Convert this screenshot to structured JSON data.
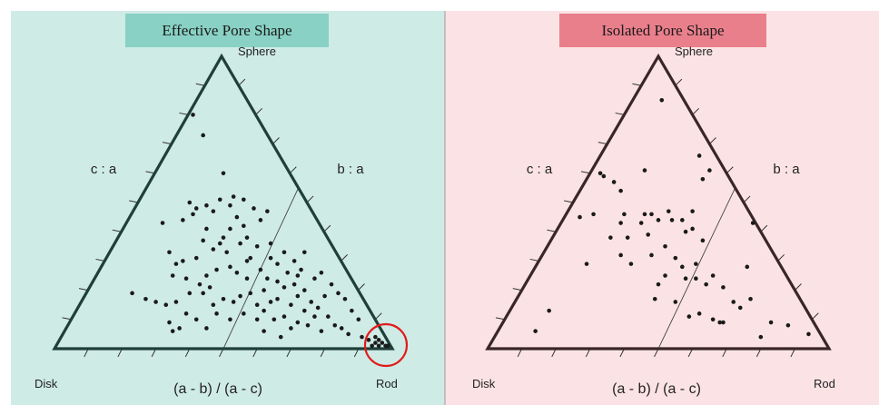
{
  "colors": {
    "left_bg": "#cfebe6",
    "right_bg": "#fbe3e5",
    "left_title_bg": "#88d1c4",
    "right_title_bg": "#ea7f8c",
    "left_frame": "#1f3f39",
    "right_frame": "#3a2528",
    "point_color": "#1a1a1a",
    "highlight_circle": "#e11b1b"
  },
  "chart_data": [
    {
      "type": "scatter",
      "title": "Effective Pore Shape",
      "vertices": {
        "top": "Sphere",
        "bottom_left": "Disk",
        "bottom_right": "Rod"
      },
      "left_axis_label": "c : a",
      "right_axis_label": "b : a",
      "bottom_axis_label": "(a - b) / (a - c)",
      "ticks_per_side": 10,
      "guide_line": true,
      "highlight": "Rod",
      "points_note": "x = (a-b)/(a-c) (0 at Disk, 1 at Rod); y = 0 at base, 1 at Sphere",
      "points": [
        [
          0.41,
          0.8
        ],
        [
          0.44,
          0.73
        ],
        [
          0.5,
          0.6
        ],
        [
          0.49,
          0.51
        ],
        [
          0.52,
          0.49
        ],
        [
          0.59,
          0.48
        ],
        [
          0.63,
          0.47
        ],
        [
          0.32,
          0.43
        ],
        [
          0.4,
          0.5
        ],
        [
          0.42,
          0.48
        ],
        [
          0.45,
          0.49
        ],
        [
          0.47,
          0.47
        ],
        [
          0.41,
          0.46
        ],
        [
          0.38,
          0.44
        ],
        [
          0.53,
          0.52
        ],
        [
          0.56,
          0.51
        ],
        [
          0.54,
          0.45
        ],
        [
          0.61,
          0.44
        ],
        [
          0.52,
          0.41
        ],
        [
          0.57,
          0.38
        ],
        [
          0.55,
          0.36
        ],
        [
          0.5,
          0.38
        ],
        [
          0.49,
          0.36
        ],
        [
          0.45,
          0.41
        ],
        [
          0.47,
          0.34
        ],
        [
          0.42,
          0.31
        ],
        [
          0.38,
          0.3
        ],
        [
          0.36,
          0.29
        ],
        [
          0.35,
          0.25
        ],
        [
          0.39,
          0.24
        ],
        [
          0.45,
          0.25
        ],
        [
          0.48,
          0.27
        ],
        [
          0.52,
          0.28
        ],
        [
          0.54,
          0.26
        ],
        [
          0.6,
          0.35
        ],
        [
          0.64,
          0.36
        ],
        [
          0.68,
          0.33
        ],
        [
          0.71,
          0.3
        ],
        [
          0.74,
          0.33
        ],
        [
          0.66,
          0.29
        ],
        [
          0.61,
          0.27
        ],
        [
          0.57,
          0.24
        ],
        [
          0.63,
          0.24
        ],
        [
          0.66,
          0.23
        ],
        [
          0.68,
          0.21
        ],
        [
          0.62,
          0.2
        ],
        [
          0.58,
          0.19
        ],
        [
          0.55,
          0.18
        ],
        [
          0.53,
          0.16
        ],
        [
          0.5,
          0.17
        ],
        [
          0.47,
          0.15
        ],
        [
          0.44,
          0.19
        ],
        [
          0.4,
          0.19
        ],
        [
          0.36,
          0.16
        ],
        [
          0.33,
          0.15
        ],
        [
          0.3,
          0.16
        ],
        [
          0.23,
          0.19
        ],
        [
          0.27,
          0.17
        ],
        [
          0.39,
          0.12
        ],
        [
          0.42,
          0.1
        ],
        [
          0.48,
          0.12
        ],
        [
          0.52,
          0.1
        ],
        [
          0.56,
          0.12
        ],
        [
          0.6,
          0.1
        ],
        [
          0.62,
          0.13
        ],
        [
          0.65,
          0.1
        ],
        [
          0.68,
          0.11
        ],
        [
          0.7,
          0.15
        ],
        [
          0.72,
          0.18
        ],
        [
          0.74,
          0.2
        ],
        [
          0.76,
          0.16
        ],
        [
          0.78,
          0.14
        ],
        [
          0.8,
          0.18
        ],
        [
          0.82,
          0.22
        ],
        [
          0.84,
          0.19
        ],
        [
          0.86,
          0.17
        ],
        [
          0.88,
          0.13
        ],
        [
          0.9,
          0.1
        ],
        [
          0.83,
          0.08
        ],
        [
          0.79,
          0.06
        ],
        [
          0.75,
          0.08
        ],
        [
          0.72,
          0.09
        ],
        [
          0.7,
          0.07
        ],
        [
          0.74,
          0.13
        ],
        [
          0.77,
          0.11
        ],
        [
          0.81,
          0.11
        ],
        [
          0.85,
          0.07
        ],
        [
          0.87,
          0.05
        ],
        [
          0.91,
          0.04
        ],
        [
          0.93,
          0.03
        ],
        [
          0.95,
          0.02
        ],
        [
          0.96,
          0.03
        ],
        [
          0.97,
          0.02
        ],
        [
          0.96,
          0.01
        ],
        [
          0.98,
          0.01
        ],
        [
          0.95,
          0.04
        ],
        [
          0.94,
          0.01
        ],
        [
          0.99,
          0.01
        ],
        [
          0.58,
          0.31
        ],
        [
          0.64,
          0.31
        ],
        [
          0.57,
          0.3
        ],
        [
          0.69,
          0.26
        ],
        [
          0.72,
          0.25
        ],
        [
          0.77,
          0.24
        ],
        [
          0.71,
          0.22
        ],
        [
          0.66,
          0.17
        ],
        [
          0.6,
          0.15
        ],
        [
          0.64,
          0.16
        ],
        [
          0.34,
          0.09
        ],
        [
          0.37,
          0.07
        ],
        [
          0.35,
          0.06
        ],
        [
          0.45,
          0.07
        ],
        [
          0.67,
          0.04
        ],
        [
          0.62,
          0.06
        ],
        [
          0.79,
          0.26
        ],
        [
          0.73,
          0.27
        ],
        [
          0.46,
          0.21
        ],
        [
          0.43,
          0.22
        ],
        [
          0.34,
          0.33
        ],
        [
          0.44,
          0.37
        ],
        [
          0.56,
          0.42
        ],
        [
          0.51,
          0.33
        ]
      ]
    },
    {
      "type": "scatter",
      "title": "Isolated Pore Shape",
      "vertices": {
        "top": "Sphere",
        "bottom_left": "Disk",
        "bottom_right": "Rod"
      },
      "left_axis_label": "c : a",
      "right_axis_label": "b : a",
      "bottom_axis_label": "(a - b) / (a - c)",
      "ticks_per_side": 10,
      "guide_line": true,
      "points_note": "x = (a-b)/(a-c) (0 at Disk, 1 at Rod); y = 0 at base, 1 at Sphere",
      "points": [
        [
          0.51,
          0.85
        ],
        [
          0.62,
          0.66
        ],
        [
          0.65,
          0.61
        ],
        [
          0.63,
          0.58
        ],
        [
          0.46,
          0.61
        ],
        [
          0.33,
          0.6
        ],
        [
          0.34,
          0.59
        ],
        [
          0.37,
          0.57
        ],
        [
          0.39,
          0.54
        ],
        [
          0.27,
          0.45
        ],
        [
          0.31,
          0.46
        ],
        [
          0.39,
          0.43
        ],
        [
          0.46,
          0.46
        ],
        [
          0.48,
          0.46
        ],
        [
          0.53,
          0.47
        ],
        [
          0.54,
          0.44
        ],
        [
          0.5,
          0.44
        ],
        [
          0.45,
          0.43
        ],
        [
          0.57,
          0.44
        ],
        [
          0.6,
          0.41
        ],
        [
          0.6,
          0.47
        ],
        [
          0.36,
          0.38
        ],
        [
          0.41,
          0.38
        ],
        [
          0.47,
          0.39
        ],
        [
          0.58,
          0.4
        ],
        [
          0.63,
          0.37
        ],
        [
          0.29,
          0.29
        ],
        [
          0.39,
          0.32
        ],
        [
          0.42,
          0.29
        ],
        [
          0.48,
          0.32
        ],
        [
          0.52,
          0.35
        ],
        [
          0.55,
          0.31
        ],
        [
          0.61,
          0.29
        ],
        [
          0.57,
          0.28
        ],
        [
          0.52,
          0.25
        ],
        [
          0.5,
          0.22
        ],
        [
          0.58,
          0.24
        ],
        [
          0.61,
          0.24
        ],
        [
          0.64,
          0.22
        ],
        [
          0.66,
          0.25
        ],
        [
          0.69,
          0.21
        ],
        [
          0.72,
          0.16
        ],
        [
          0.77,
          0.17
        ],
        [
          0.74,
          0.14
        ],
        [
          0.76,
          0.28
        ],
        [
          0.82,
          0.43
        ],
        [
          0.49,
          0.17
        ],
        [
          0.55,
          0.16
        ],
        [
          0.62,
          0.12
        ],
        [
          0.66,
          0.1
        ],
        [
          0.68,
          0.09
        ],
        [
          0.69,
          0.09
        ],
        [
          0.83,
          0.09
        ],
        [
          0.88,
          0.08
        ],
        [
          0.94,
          0.05
        ],
        [
          0.8,
          0.04
        ],
        [
          0.18,
          0.13
        ],
        [
          0.14,
          0.06
        ],
        [
          0.4,
          0.46
        ],
        [
          0.59,
          0.11
        ]
      ]
    }
  ]
}
